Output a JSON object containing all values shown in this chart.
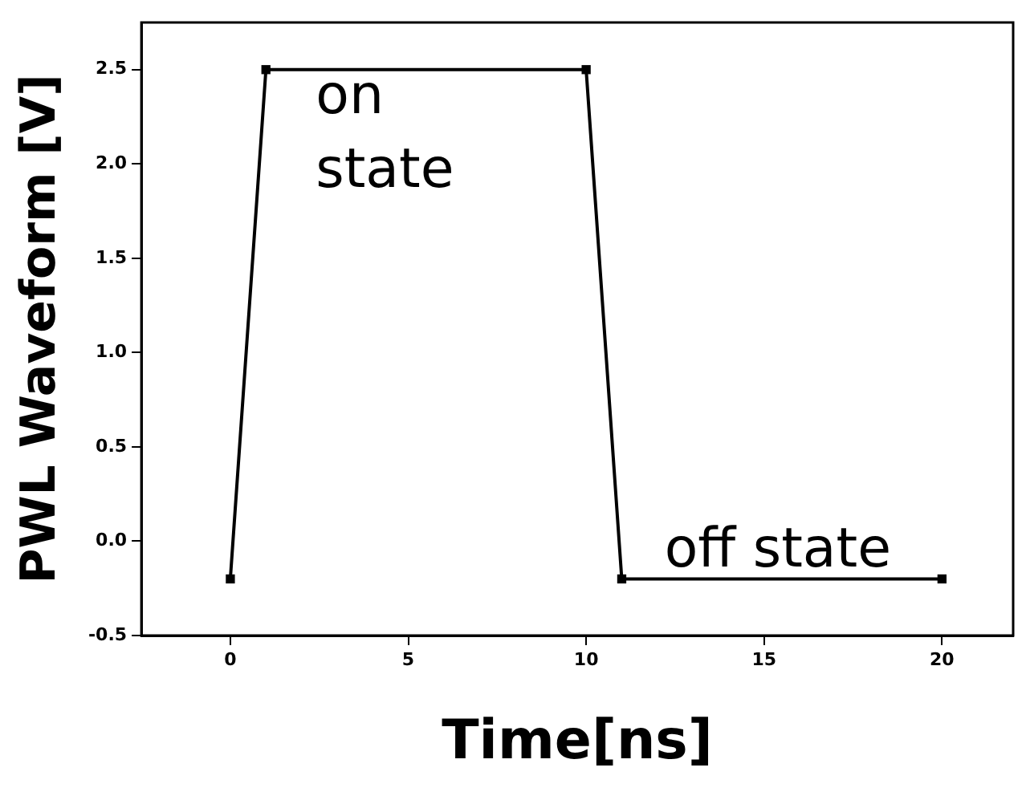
{
  "chart_data": {
    "type": "line",
    "xlabel": "Time[ns]",
    "ylabel": "PWL Waveform [V]",
    "x": [
      0,
      1,
      10,
      11,
      20
    ],
    "series": [
      {
        "color": "#000000",
        "values": [
          -0.2,
          2.5,
          2.5,
          -0.2,
          -0.2
        ]
      }
    ],
    "xlim": [
      -2.5,
      22
    ],
    "xticks": [
      0,
      5,
      10,
      15,
      20
    ],
    "ylim": [
      -0.5,
      2.75
    ],
    "yticks": [
      -0.5,
      {
        "value": 0,
        "label": "0.0"
      },
      0.5,
      {
        "value": 1,
        "label": "1.0"
      },
      1.5,
      {
        "value": 2,
        "label": "2.0"
      },
      2.5
    ],
    "marker": "square",
    "line_style": "solid",
    "grid": false,
    "legend": false,
    "annotations": [
      "on\nstate",
      "off state"
    ]
  }
}
